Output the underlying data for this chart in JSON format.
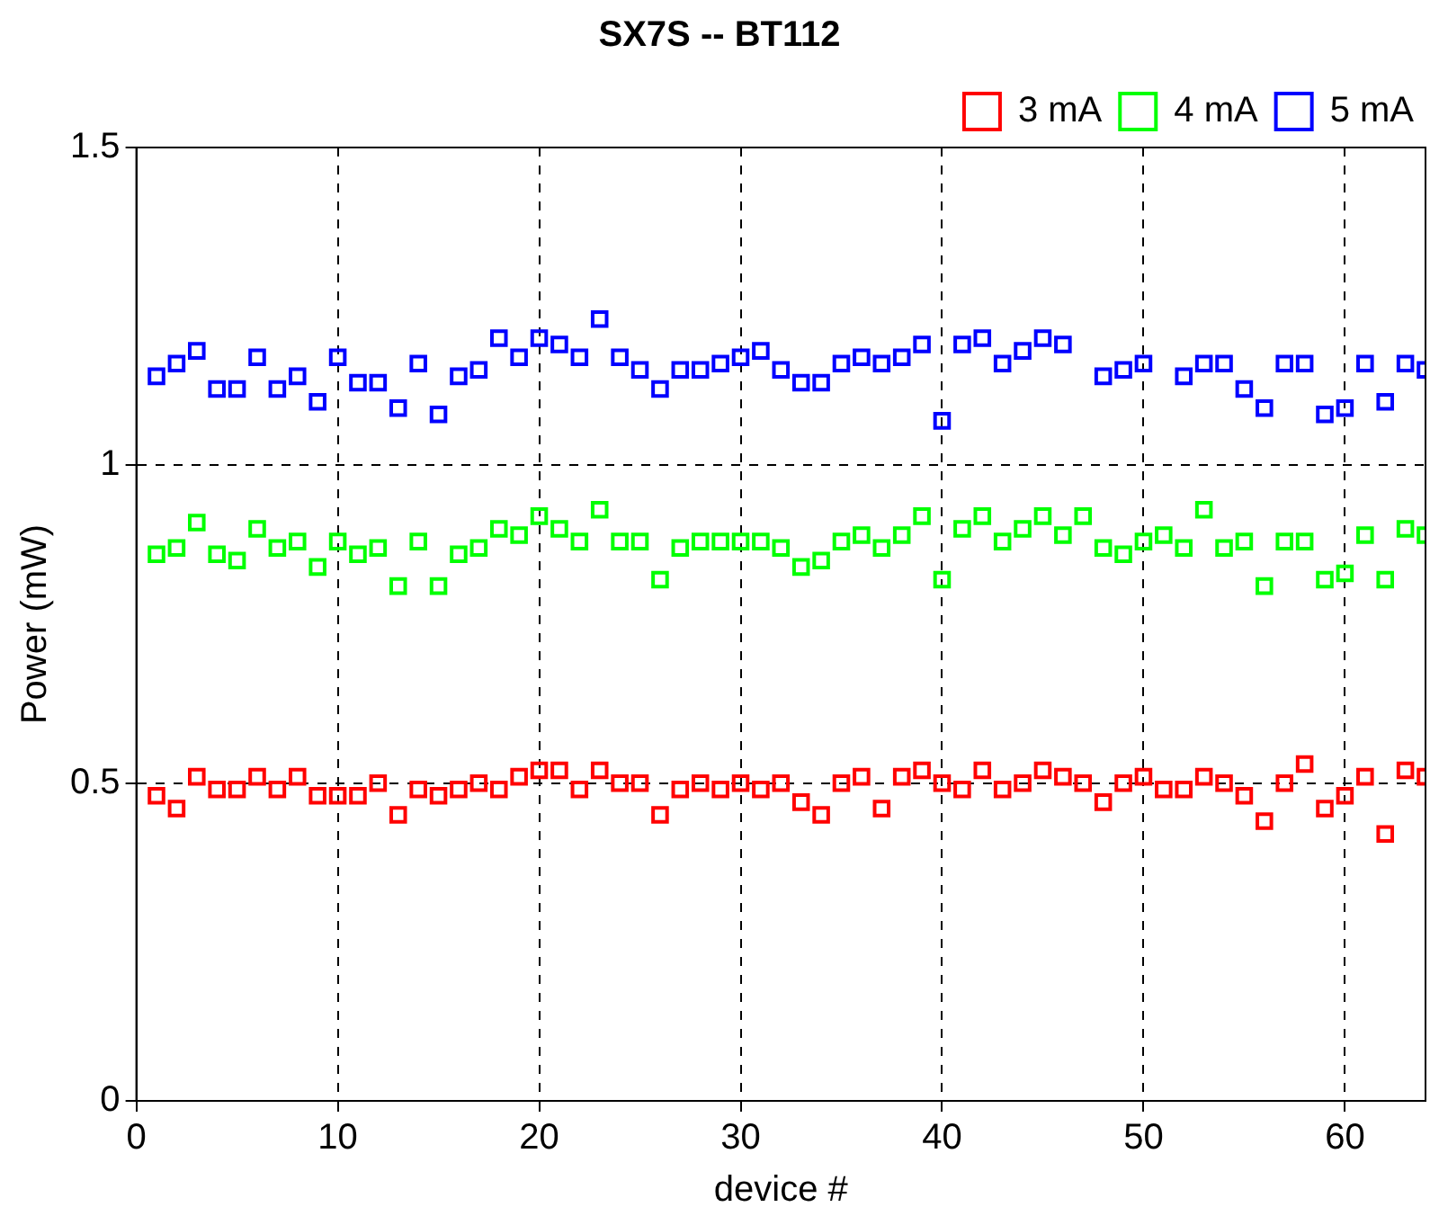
{
  "chart_data": {
    "type": "scatter",
    "title": "SX7S -- BT112",
    "xlabel": "device #",
    "ylabel": "Power (mW)",
    "x": [
      1,
      2,
      3,
      4,
      5,
      6,
      7,
      8,
      9,
      10,
      11,
      12,
      13,
      14,
      15,
      16,
      17,
      18,
      19,
      20,
      21,
      22,
      23,
      24,
      25,
      26,
      27,
      28,
      29,
      30,
      31,
      32,
      33,
      34,
      35,
      36,
      37,
      38,
      39,
      40,
      41,
      42,
      43,
      44,
      45,
      46,
      47,
      48,
      49,
      50,
      51,
      52,
      53,
      54,
      55,
      56,
      57,
      58,
      59,
      60,
      61,
      62,
      63,
      64
    ],
    "series": [
      {
        "name": "3 mA",
        "color": "#ff0000",
        "values": [
          0.48,
          0.46,
          0.51,
          0.49,
          0.49,
          0.51,
          0.49,
          0.51,
          0.48,
          0.48,
          0.48,
          0.5,
          0.45,
          0.49,
          0.48,
          0.49,
          0.5,
          0.49,
          0.51,
          0.52,
          0.52,
          0.49,
          0.52,
          0.5,
          0.5,
          0.45,
          0.49,
          0.5,
          0.49,
          0.5,
          0.49,
          0.5,
          0.47,
          0.45,
          0.5,
          0.51,
          0.46,
          0.51,
          0.52,
          0.5,
          0.49,
          0.52,
          0.49,
          0.5,
          0.52,
          0.51,
          0.5,
          0.47,
          0.5,
          0.51,
          0.49,
          0.49,
          0.51,
          0.5,
          0.48,
          0.44,
          0.5,
          0.53,
          0.46,
          0.48,
          0.51,
          0.42,
          0.52,
          0.51
        ]
      },
      {
        "name": "4 mA",
        "color": "#00ff00",
        "values": [
          0.86,
          0.87,
          0.91,
          0.86,
          0.85,
          0.9,
          0.87,
          0.88,
          0.84,
          0.88,
          0.86,
          0.87,
          0.81,
          0.88,
          0.81,
          0.86,
          0.87,
          0.9,
          0.89,
          0.92,
          0.9,
          0.88,
          0.93,
          0.88,
          0.88,
          0.82,
          0.87,
          0.88,
          0.88,
          0.88,
          0.88,
          0.87,
          0.84,
          0.85,
          0.88,
          0.89,
          0.87,
          0.89,
          0.92,
          0.82,
          0.9,
          0.92,
          0.88,
          0.9,
          0.92,
          0.89,
          0.92,
          0.87,
          0.86,
          0.88,
          0.89,
          0.87,
          0.93,
          0.87,
          0.88,
          0.81,
          0.88,
          0.88,
          0.82,
          0.83,
          0.89,
          0.82,
          0.9,
          0.89
        ]
      },
      {
        "name": "5 mA",
        "color": "#0000ff",
        "values": [
          1.14,
          1.16,
          1.18,
          1.12,
          1.12,
          1.17,
          1.12,
          1.14,
          1.1,
          1.17,
          1.13,
          1.13,
          1.09,
          1.16,
          1.08,
          1.14,
          1.15,
          1.2,
          1.17,
          1.2,
          1.19,
          1.17,
          1.23,
          1.17,
          1.15,
          1.12,
          1.15,
          1.15,
          1.16,
          1.17,
          1.18,
          1.15,
          1.13,
          1.13,
          1.16,
          1.17,
          1.16,
          1.17,
          1.19,
          1.07,
          1.19,
          1.2,
          1.16,
          1.18,
          1.2,
          1.19,
          null,
          1.14,
          1.15,
          1.16,
          null,
          1.14,
          1.16,
          1.16,
          1.12,
          1.09,
          1.16,
          1.16,
          1.08,
          1.09,
          1.16,
          1.1,
          1.16,
          1.15
        ]
      }
    ],
    "xlim": [
      0,
      64
    ],
    "xticks": [
      0,
      10,
      20,
      30,
      40,
      50,
      60
    ],
    "ylim": [
      0,
      1.5
    ],
    "yticks": [
      0,
      0.5,
      1,
      1.5
    ],
    "grid": true,
    "legend": "top right",
    "marker": "square"
  }
}
